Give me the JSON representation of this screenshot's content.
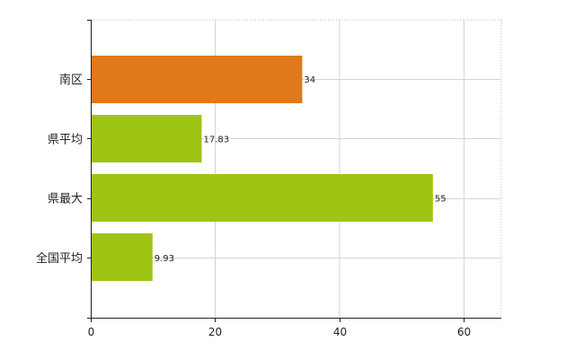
{
  "chart_data": {
    "type": "bar",
    "orientation": "horizontal",
    "categories": [
      "南区",
      "県平均",
      "県最大",
      "全国平均"
    ],
    "values": [
      34,
      17.83,
      55,
      9.93
    ],
    "value_labels": [
      "34",
      "17.83",
      "55",
      "9.93"
    ],
    "colors": [
      "#e0781c",
      "#9ec414",
      "#9ec414",
      "#9ec414"
    ],
    "xlim": [
      0,
      66
    ],
    "xticks": [
      0,
      20,
      40,
      60
    ],
    "grid": true,
    "title": "",
    "xlabel": "",
    "ylabel": ""
  }
}
